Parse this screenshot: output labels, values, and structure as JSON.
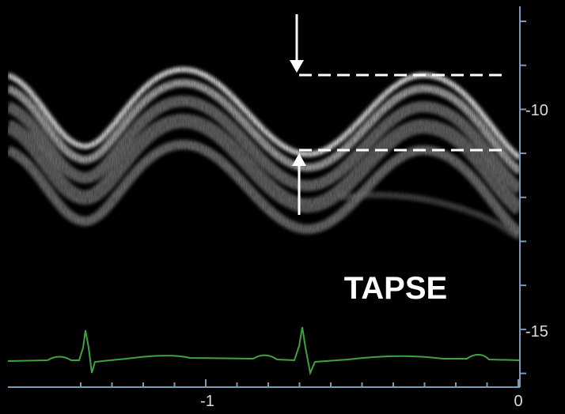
{
  "annotation": "TAPSE",
  "right_axis": {
    "ticks": [
      "-10",
      "-15"
    ]
  },
  "bottom_axis": {
    "ticks": [
      "-1",
      "0"
    ]
  }
}
